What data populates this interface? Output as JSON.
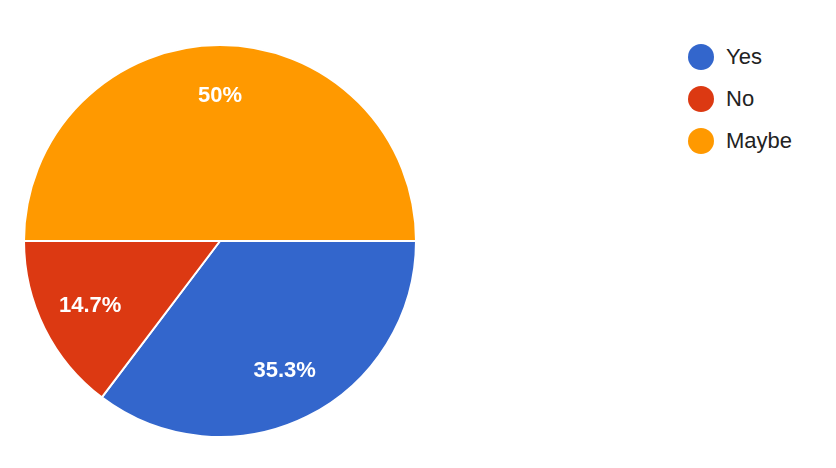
{
  "chart_data": {
    "type": "pie",
    "categories": [
      "Yes",
      "No",
      "Maybe"
    ],
    "values": [
      35.3,
      14.7,
      50
    ],
    "value_labels": [
      "35.3%",
      "14.7%",
      "50%"
    ],
    "colors": [
      "#3366cc",
      "#dc3912",
      "#ff9900"
    ],
    "legend": "right",
    "data_labels": true
  }
}
